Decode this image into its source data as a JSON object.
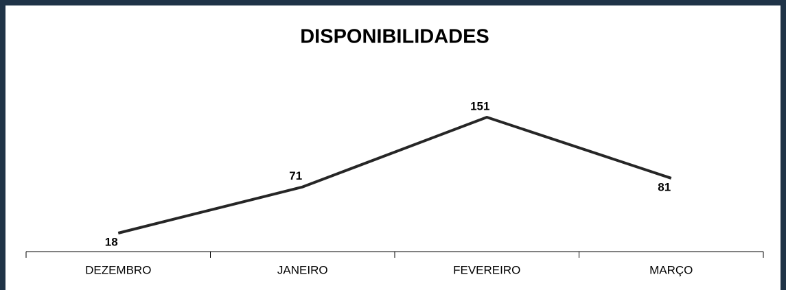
{
  "chart_data": {
    "type": "line",
    "title": "DISPONIBILIDADES",
    "categories": [
      "DEZEMBRO",
      "JANEIRO",
      "FEVEREIRO",
      "MARÇO"
    ],
    "values": [
      18,
      71,
      151,
      81
    ],
    "color": "#262626"
  }
}
